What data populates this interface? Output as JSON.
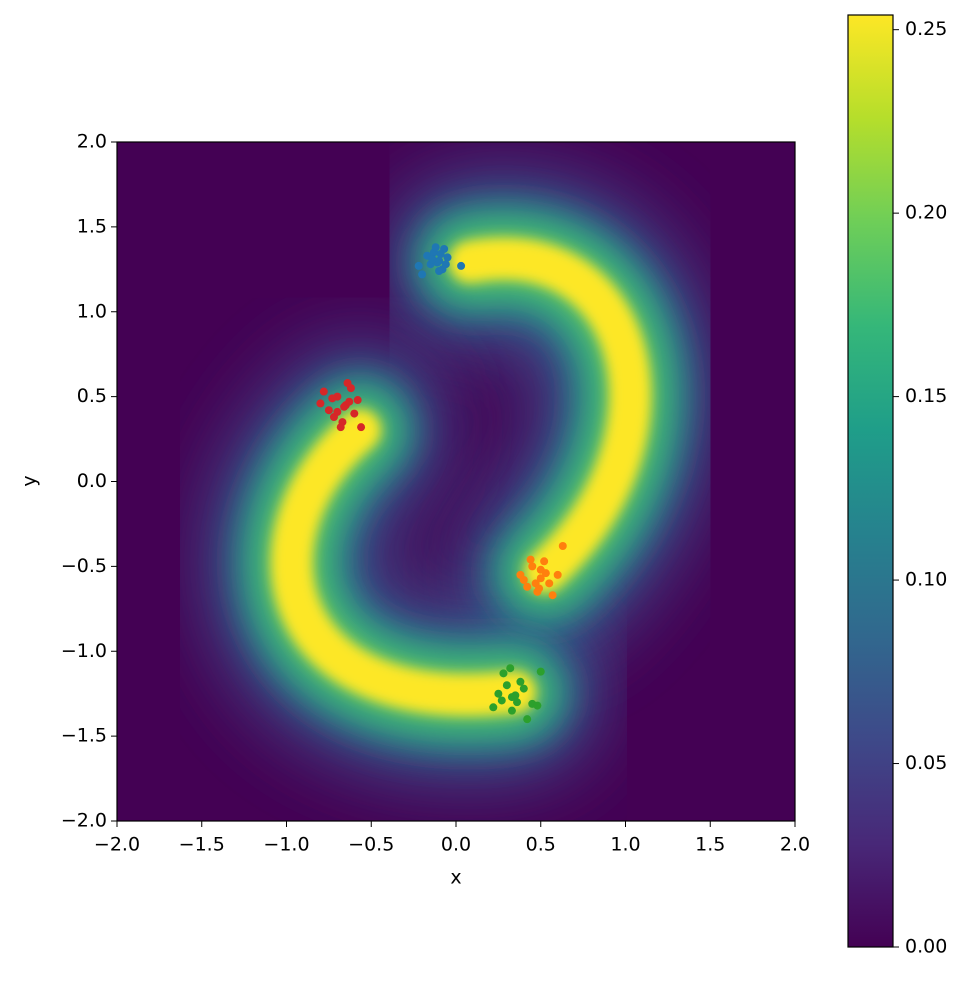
{
  "chart_data": {
    "type": "scatter",
    "xlabel": "x",
    "ylabel": "y",
    "xlim": [
      -2,
      2
    ],
    "ylim": [
      -2,
      2
    ],
    "xticks": [
      {
        "value": -2,
        "label": "−2.0"
      },
      {
        "value": -1.5,
        "label": "−1.5"
      },
      {
        "value": -1,
        "label": "−1.0"
      },
      {
        "value": -0.5,
        "label": "−0.5"
      },
      {
        "value": 0,
        "label": "0.0"
      },
      {
        "value": 0.5,
        "label": "0.5"
      },
      {
        "value": 1,
        "label": "1.0"
      },
      {
        "value": 1.5,
        "label": "1.5"
      },
      {
        "value": 2,
        "label": "2.0"
      }
    ],
    "yticks": [
      {
        "value": -2,
        "label": "−2.0"
      },
      {
        "value": -1.5,
        "label": "−1.5"
      },
      {
        "value": -1,
        "label": "−1.0"
      },
      {
        "value": -0.5,
        "label": "−0.5"
      },
      {
        "value": 0,
        "label": "0.0"
      },
      {
        "value": 0.5,
        "label": "0.5"
      },
      {
        "value": 1,
        "label": "1.0"
      },
      {
        "value": 1.5,
        "label": "1.5"
      },
      {
        "value": 2,
        "label": "2.0"
      }
    ],
    "colormap": "viridis",
    "clim": [
      0,
      0.254
    ],
    "cticks": [
      {
        "value": 0,
        "label": "0.00"
      },
      {
        "value": 0.05,
        "label": "0.05"
      },
      {
        "value": 0.1,
        "label": "0.10"
      },
      {
        "value": 0.15,
        "label": "0.15"
      },
      {
        "value": 0.2,
        "label": "0.20"
      },
      {
        "value": 0.25,
        "label": "0.25"
      }
    ],
    "series": [
      {
        "color": "#1f77b4",
        "x": [
          -0.1,
          -0.13,
          -0.08,
          -0.15,
          -0.05,
          -0.12,
          -0.2,
          -0.22,
          0.03,
          -0.1,
          -0.07,
          -0.17,
          -0.11,
          -0.14,
          -0.09,
          -0.06
        ],
        "values": [
          1.3,
          1.35,
          1.25,
          1.28,
          1.32,
          1.38,
          1.22,
          1.27,
          1.27,
          1.24,
          1.37,
          1.33,
          1.29,
          1.31,
          1.34,
          1.28
        ]
      },
      {
        "color": "#d62728",
        "x": [
          -0.65,
          -0.7,
          -0.6,
          -0.75,
          -0.67,
          -0.62,
          -0.8,
          -0.68,
          -0.58,
          -0.72,
          -0.64,
          -0.56,
          -0.78,
          -0.66,
          -0.7,
          -0.63,
          -0.73
        ],
        "values": [
          0.45,
          0.5,
          0.4,
          0.42,
          0.35,
          0.55,
          0.46,
          0.32,
          0.48,
          0.38,
          0.58,
          0.32,
          0.53,
          0.44,
          0.41,
          0.47,
          0.49
        ]
      },
      {
        "color": "#ff7f0e",
        "x": [
          0.5,
          0.45,
          0.55,
          0.48,
          0.52,
          0.4,
          0.6,
          0.63,
          0.42,
          0.5,
          0.57,
          0.47,
          0.53,
          0.44,
          0.38,
          0.49
        ],
        "values": [
          -0.57,
          -0.5,
          -0.6,
          -0.65,
          -0.47,
          -0.58,
          -0.55,
          -0.38,
          -0.62,
          -0.52,
          -0.67,
          -0.6,
          -0.54,
          -0.46,
          -0.55,
          -0.63
        ]
      },
      {
        "color": "#2ca02c",
        "x": [
          0.33,
          0.3,
          0.36,
          0.25,
          0.4,
          0.33,
          0.28,
          0.45,
          0.5,
          0.22,
          0.38,
          0.42,
          0.32,
          0.35,
          0.27,
          0.48
        ],
        "values": [
          -1.27,
          -1.2,
          -1.3,
          -1.25,
          -1.22,
          -1.35,
          -1.13,
          -1.31,
          -1.12,
          -1.33,
          -1.18,
          -1.4,
          -1.1,
          -1.26,
          -1.29,
          -1.32
        ]
      }
    ]
  }
}
